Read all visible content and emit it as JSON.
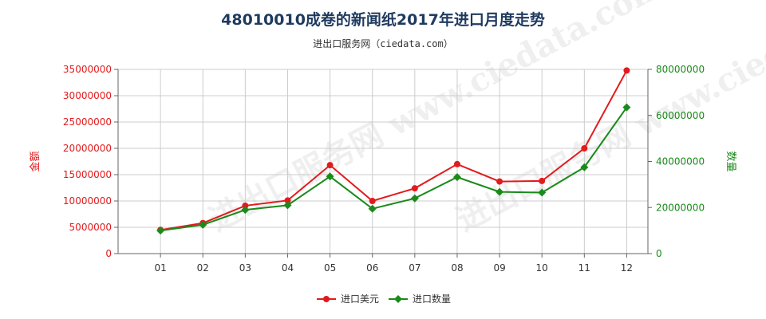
{
  "title": "48010010成卷的新闻纸2017年进口月度走势",
  "subtitle": "进出口服务网（ciedata.com）",
  "watermark": "进出口服务网 www.ciedata.com",
  "colors": {
    "amount": "#e31a1c",
    "quantity": "#1a8a1a",
    "grid": "#cccccc",
    "axis": "#666666"
  },
  "chart_data": {
    "type": "line",
    "categories": [
      "01",
      "02",
      "03",
      "04",
      "05",
      "06",
      "07",
      "08",
      "09",
      "10",
      "11",
      "12"
    ],
    "y_left_label": "金额",
    "y_right_label": "数量",
    "y_left_lim": [
      0,
      35000000
    ],
    "y_left_ticks": [
      "0",
      "5000000",
      "10000000",
      "15000000",
      "20000000",
      "25000000",
      "30000000",
      "35000000"
    ],
    "y_right_lim": [
      0,
      80000000
    ],
    "y_right_ticks": [
      "0",
      "20000000",
      "40000000",
      "60000000",
      "80000000"
    ],
    "grid": true,
    "legend_position": "bottom",
    "series": [
      {
        "name": "进口美元",
        "axis": "left",
        "color": "#e31a1c",
        "marker": "circle",
        "values": [
          4500000,
          5800000,
          9100000,
          10100000,
          16800000,
          10000000,
          12400000,
          17000000,
          13700000,
          13800000,
          20000000,
          34800000
        ]
      },
      {
        "name": "进口数量",
        "axis": "right",
        "color": "#1a8a1a",
        "marker": "diamond",
        "values": [
          10000000,
          12500000,
          19000000,
          21000000,
          33500000,
          19500000,
          24000000,
          33200000,
          26800000,
          26500000,
          37500000,
          63500000
        ]
      }
    ]
  }
}
